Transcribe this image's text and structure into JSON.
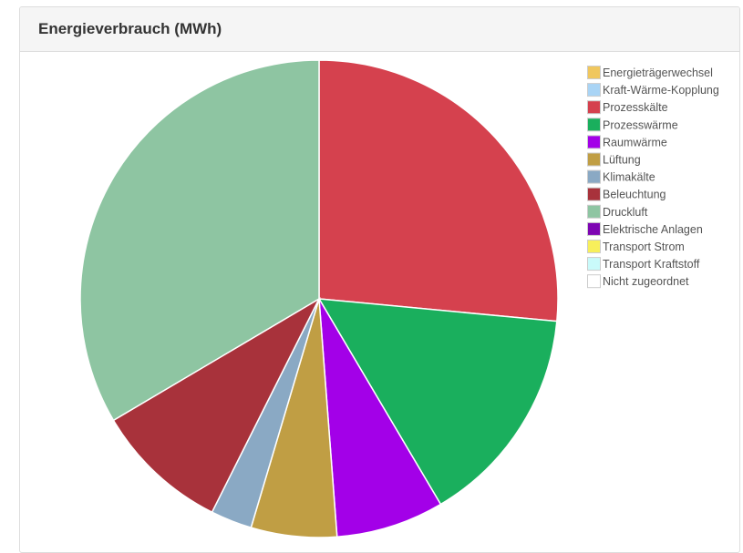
{
  "panel": {
    "title": "Energieverbrauch (MWh)"
  },
  "chart_data": {
    "type": "pie",
    "title": "Energieverbrauch (MWh)",
    "legend_position": "top-right",
    "slices": [
      {
        "label": "Energieträgerwechsel",
        "value": 0,
        "color": "#f0c75e"
      },
      {
        "label": "Kraft-Wärme-Kopplung",
        "value": 0,
        "color": "#a9d4f5"
      },
      {
        "label": "Prozesskälte",
        "value": 26.5,
        "color": "#d5414e"
      },
      {
        "label": "Prozesswärme",
        "value": 15.0,
        "color": "#1aaf5d"
      },
      {
        "label": "Raumwärme",
        "value": 7.3,
        "color": "#a300e8"
      },
      {
        "label": "Lüftung",
        "value": 5.8,
        "color": "#c09e44"
      },
      {
        "label": "Klimakälte",
        "value": 2.8,
        "color": "#8aa9c4"
      },
      {
        "label": "Beleuchtung",
        "value": 9.1,
        "color": "#a8323b"
      },
      {
        "label": "Druckluft",
        "value": 33.5,
        "color": "#8ec5a2"
      },
      {
        "label": "Elektrische Anlagen",
        "value": 0,
        "color": "#7e05b3"
      },
      {
        "label": "Transport Strom",
        "value": 0,
        "color": "#f7ef5b"
      },
      {
        "label": "Transport Kraftstoff",
        "value": 0,
        "color": "#c9fafa"
      },
      {
        "label": "Nicht zugeordnet",
        "value": 0,
        "color": "#ffffff"
      }
    ]
  }
}
